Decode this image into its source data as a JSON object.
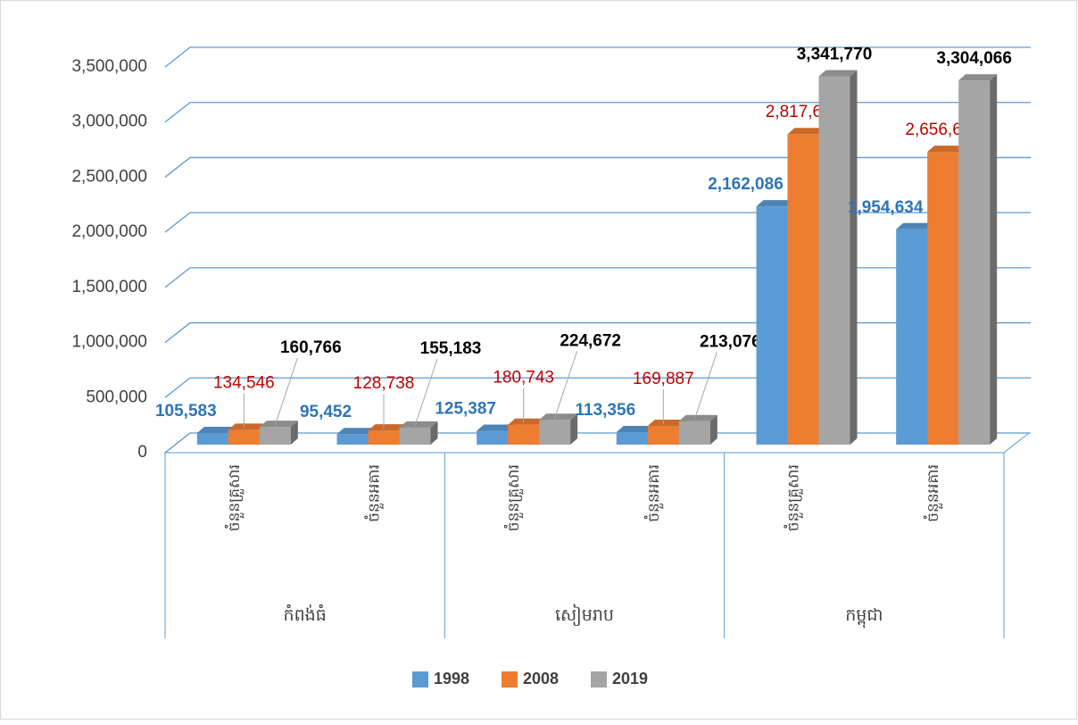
{
  "chart_data": {
    "type": "bar3d",
    "categories": [
      "ចំនួនគ្រួសារ",
      "ចំនួនអគារ",
      "ចំនួនគ្រួសារ",
      "ចំនួនអគារ",
      "ចំនួនគ្រួសារ",
      "ចំនួនអគារ"
    ],
    "category_groups": [
      "កំពង់ធំ",
      "សៀមរាប",
      "កម្ពុជា"
    ],
    "series": [
      {
        "name": "1998",
        "color": "#5b9bd5",
        "label_color": "#2e75b6",
        "values": [
          105583,
          95452,
          125387,
          113356,
          2162086,
          1954634
        ],
        "value_labels": [
          "105,583",
          "95,452",
          "125,387",
          "113,356",
          "2,162,086",
          "1,954,634"
        ]
      },
      {
        "name": "2008",
        "color": "#ed7d31",
        "label_color": "#c00000",
        "values": [
          134546,
          128738,
          180743,
          169887,
          2817637,
          2656604
        ],
        "value_labels": [
          "134,546",
          "128,738",
          "180,743",
          "169,887",
          "2,817,637",
          "2,656,604"
        ]
      },
      {
        "name": "2019",
        "color": "#a5a5a5",
        "label_color": "#000000",
        "values": [
          160766,
          155183,
          224672,
          213076,
          3341770,
          3304066
        ],
        "value_labels": [
          "160,766",
          "155,183",
          "224,672",
          "213,076",
          "3,341,770",
          "3,304,066"
        ]
      }
    ],
    "ylim": [
      0,
      3500000
    ],
    "yticks": [
      0,
      {
        "value": 500000,
        "label": "500,000"
      },
      {
        "value": 1000000,
        "label": "1,000,000"
      },
      {
        "value": 1500000,
        "label": "1,500,000"
      },
      {
        "value": 2000000,
        "label": "2,000,000"
      },
      {
        "value": 2500000,
        "label": "2,500,000"
      },
      {
        "value": 3000000,
        "label": "3,000,000"
      },
      {
        "value": 3500000,
        "label": "3,500,000"
      }
    ],
    "grid": true,
    "legend": "bottom"
  }
}
